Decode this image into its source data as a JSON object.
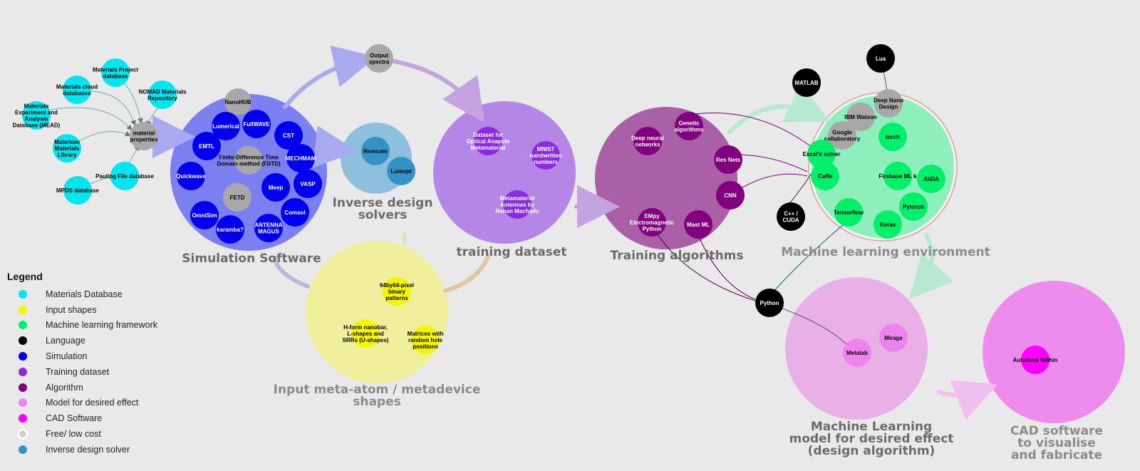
{
  "colors": {
    "materials_database": "#00e5ee",
    "input_shapes": "#f5f500",
    "ml_framework": "#00f06a",
    "language": "#000000",
    "simulation": "#0000ee",
    "training_dataset": "#8a2be2",
    "algorithm": "#800080",
    "model": "#ee82ee",
    "cad": "#ff00ff",
    "free": "#a8a8a8",
    "inverse_solver": "#3592c4"
  },
  "clusters": {
    "simulation": "Simulation Software",
    "inverse": "Inverse design\nsolvers",
    "training": "training dataset",
    "algorithms": "Training algorithms",
    "mlenv": "Machine learning environment",
    "input": "Input meta-atom / metadevice\nshapes",
    "model": "Machine Learning\nmodel for desired effect\n(design algorithm)",
    "cad": "CAD software\nto visualise\nand fabricate"
  },
  "nodes": {
    "materials_project": "Materials Project\ndatabase",
    "materials_cloud": "Materials cloud\ndatabases",
    "nomad": "NOMAD Materials\nRepository",
    "mead": "Materials\nExperiment and\nAnalysis\nDatabase (MEAD)",
    "materiom": "Materiom\nMaterials\nLibrary",
    "pauling": "Pauling File database",
    "mpds": "MPDS database",
    "material_properties": "material\nproperties",
    "nanohub": "NanoHUB",
    "lumerical": "Lumerical",
    "fullwave": "FullWAVE",
    "cst": "CST",
    "emtl": "EMTL",
    "fdtd": "Finite-Difference Time\nDomain method (FDTD)",
    "mechmam": "MECHMAM",
    "quickwave": "Quickwave",
    "vasp": "VASP",
    "fetd": "FETD",
    "meep": "Meep",
    "omnisim": "OmniSim",
    "comsol": "Comsol",
    "karamba": "karamba?",
    "antenna_magus": "ANTENNA\nMAGUS",
    "output_spectra": "Output\nspectra",
    "remcom": "Remcom",
    "lumopt": "Lumopt",
    "dataset_anapole": "Dataset for\nOptical Anapole\nMetamaterial",
    "mnist": "MNIST\nhandwritten\nnumbers",
    "metamaterial_antennas": "Metamaterial\nAntennas by\nRenan Machado",
    "deep_neural": "Deep neural\nnetworks",
    "genetic": "Genetic\nalgorithms",
    "resnets": "Res Nets",
    "cnn": "CNN",
    "empy": "EMpy\nElectromagnetic\nPython",
    "mastml": "Mast ML",
    "lua": "Lua",
    "matlab": "MATLAB",
    "deep_nano": "Deep Nano\nDesign",
    "ibm_watson": "IBM Watson",
    "google_colab": "Google\ncollaboratory",
    "torch": "torch",
    "excel_solver": "Excel's solver",
    "caffe": "Caffe",
    "firebase": "Firebase ML k",
    "aiida": "AiiDA",
    "pytorch": "Pytorch",
    "tensorflow": "Tensorflow",
    "keras": "Keras",
    "cpp_cuda": "C++ /\nCUDA",
    "python": "Python",
    "binary_patterns": "64by64-pixel\nbinary\npatterns",
    "hform": "H-form nanobar,\nL-shapes and\nSRRs (U-shapes)",
    "matrices": "Matrices with\nrandom hole\npositions",
    "metalab": "Metalab",
    "mirage": "Mirage",
    "autodesk": "Autodesk Within"
  },
  "legend": {
    "title": "Legend",
    "items": [
      {
        "label": "Materials Database",
        "color": "#00e5ee"
      },
      {
        "label": "Input shapes",
        "color": "#f5f500"
      },
      {
        "label": "Machine learning framework",
        "color": "#00f06a"
      },
      {
        "label": "Language",
        "color": "#000000"
      },
      {
        "label": "Simulation",
        "color": "#0000ee"
      },
      {
        "label": "Training dataset",
        "color": "#8a2be2"
      },
      {
        "label": "Algorithm",
        "color": "#800080"
      },
      {
        "label": "Model for desired effect",
        "color": "#ee82ee"
      },
      {
        "label": "CAD Software",
        "color": "#ff00ff"
      },
      {
        "label": "Free/ low cost",
        "color": "#cfcfcf",
        "ring": true
      },
      {
        "label": "Inverse design solver",
        "color": "#3592c4"
      }
    ]
  }
}
